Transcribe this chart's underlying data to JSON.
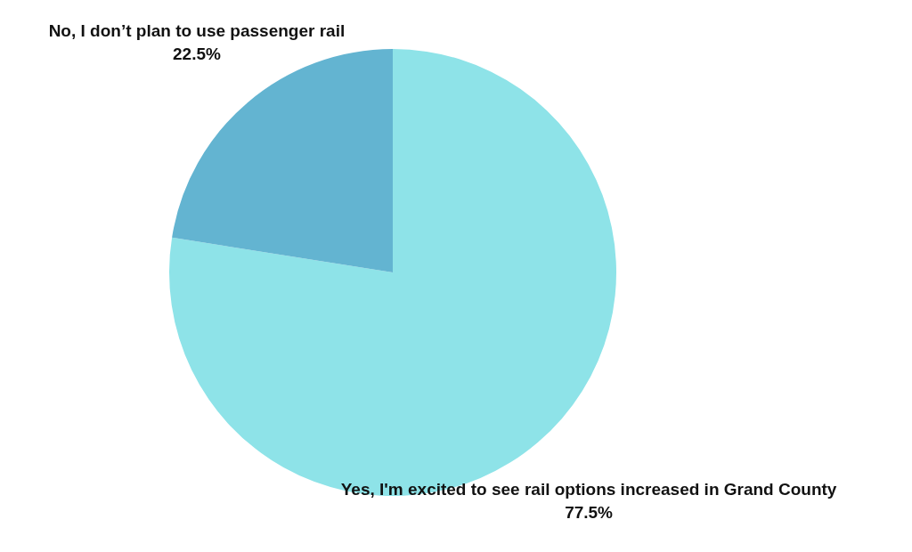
{
  "chart_data": {
    "type": "pie",
    "categories": [
      "Yes, I'm excited to see rail options increased in Grand County",
      "No, I don’t plan to use passenger rail"
    ],
    "values": [
      77.5,
      22.5
    ],
    "colors": [
      "#8ee3e8",
      "#63b4d1"
    ],
    "value_labels": [
      "77.5%",
      "22.5%"
    ],
    "legend": false
  }
}
